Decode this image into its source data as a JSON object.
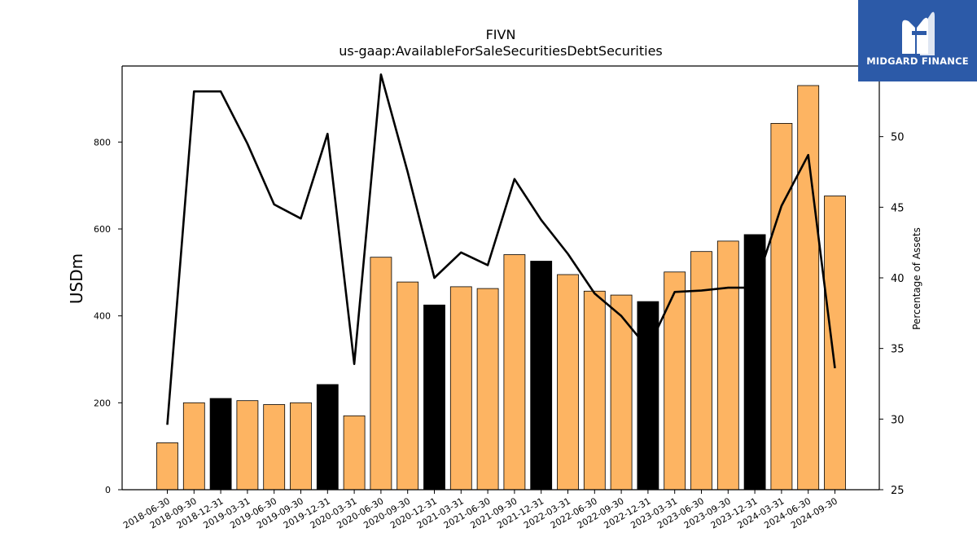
{
  "brand": {
    "name": "MIDGARD FINANCE",
    "logo_icon": "midgard-m-logo",
    "color": "#2c5aa8"
  },
  "colors": {
    "bar_default": "#fdb462",
    "bar_highlight": "#000000",
    "line": "#000000"
  },
  "chart_data": {
    "type": "bar",
    "title": "FIVN",
    "subtitle": "us-gaap:AvailableForSaleSecuritiesDebtSecurities",
    "ylabel": "USDm",
    "y2label": "Percentage of Assets",
    "ylim": [
      0,
      975
    ],
    "y2lim": [
      25,
      55
    ],
    "yticks": [
      0,
      200,
      400,
      600,
      800
    ],
    "y2ticks": [
      25,
      30,
      35,
      40,
      45,
      50
    ],
    "categories": [
      "2018-06-30",
      "2018-09-30",
      "2018-12-31",
      "2019-03-31",
      "2019-06-30",
      "2019-09-30",
      "2019-12-31",
      "2020-03-31",
      "2020-06-30",
      "2020-09-30",
      "2020-12-31",
      "2021-03-31",
      "2021-06-30",
      "2021-09-30",
      "2021-12-31",
      "2022-03-31",
      "2022-06-30",
      "2022-09-30",
      "2022-12-31",
      "2023-03-31",
      "2023-06-30",
      "2023-09-30",
      "2023-12-31",
      "2024-03-31",
      "2024-06-30",
      "2024-09-30"
    ],
    "series": [
      {
        "type": "bar",
        "values": [
          108,
          200,
          210,
          205,
          196,
          200,
          242,
          170,
          535,
          478,
          425,
          467,
          463,
          541,
          526,
          495,
          457,
          448,
          433,
          501,
          548,
          572,
          587,
          843,
          930,
          676
        ],
        "highlight": [
          false,
          false,
          true,
          false,
          false,
          false,
          true,
          false,
          false,
          false,
          true,
          false,
          false,
          false,
          true,
          false,
          false,
          false,
          true,
          false,
          false,
          false,
          true,
          false,
          false,
          false
        ]
      },
      {
        "type": "line",
        "axis": "right",
        "values": [
          29.6,
          53.2,
          53.2,
          49.5,
          45.2,
          44.2,
          50.2,
          33.9,
          54.4,
          47.5,
          40.0,
          41.8,
          40.9,
          47.0,
          44.1,
          41.7,
          38.9,
          37.3,
          35.0,
          39.0,
          39.1,
          39.3,
          39.3,
          45.1,
          48.7,
          33.6
        ]
      }
    ]
  }
}
